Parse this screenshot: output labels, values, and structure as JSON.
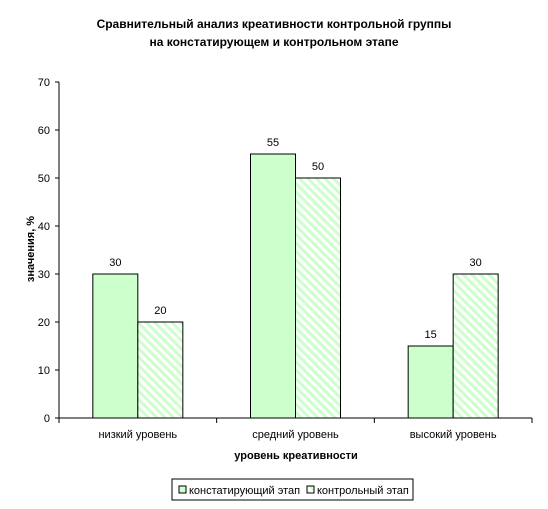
{
  "chart_data": {
    "type": "bar",
    "title": [
      "Сравнительный анализ креативности контрольной группы",
      "на констатирующем и контрольном этапе"
    ],
    "xlabel": "уровень креативности",
    "ylabel": "значения, %",
    "categories": [
      "низкий уровень",
      "средний уровень",
      "высокий уровень"
    ],
    "ylim": [
      0,
      70
    ],
    "yticks": [
      0,
      10,
      20,
      30,
      40,
      50,
      60,
      70
    ],
    "grid": false,
    "legend_position": "bottom",
    "series": [
      {
        "name": "констатирующий этап",
        "values": [
          30,
          55,
          15
        ],
        "color": "#ccffcc",
        "pattern": "solid"
      },
      {
        "name": "контрольный этап",
        "values": [
          20,
          50,
          30
        ],
        "color": "#ccffcc",
        "pattern": "diagonal-hatch"
      }
    ]
  }
}
